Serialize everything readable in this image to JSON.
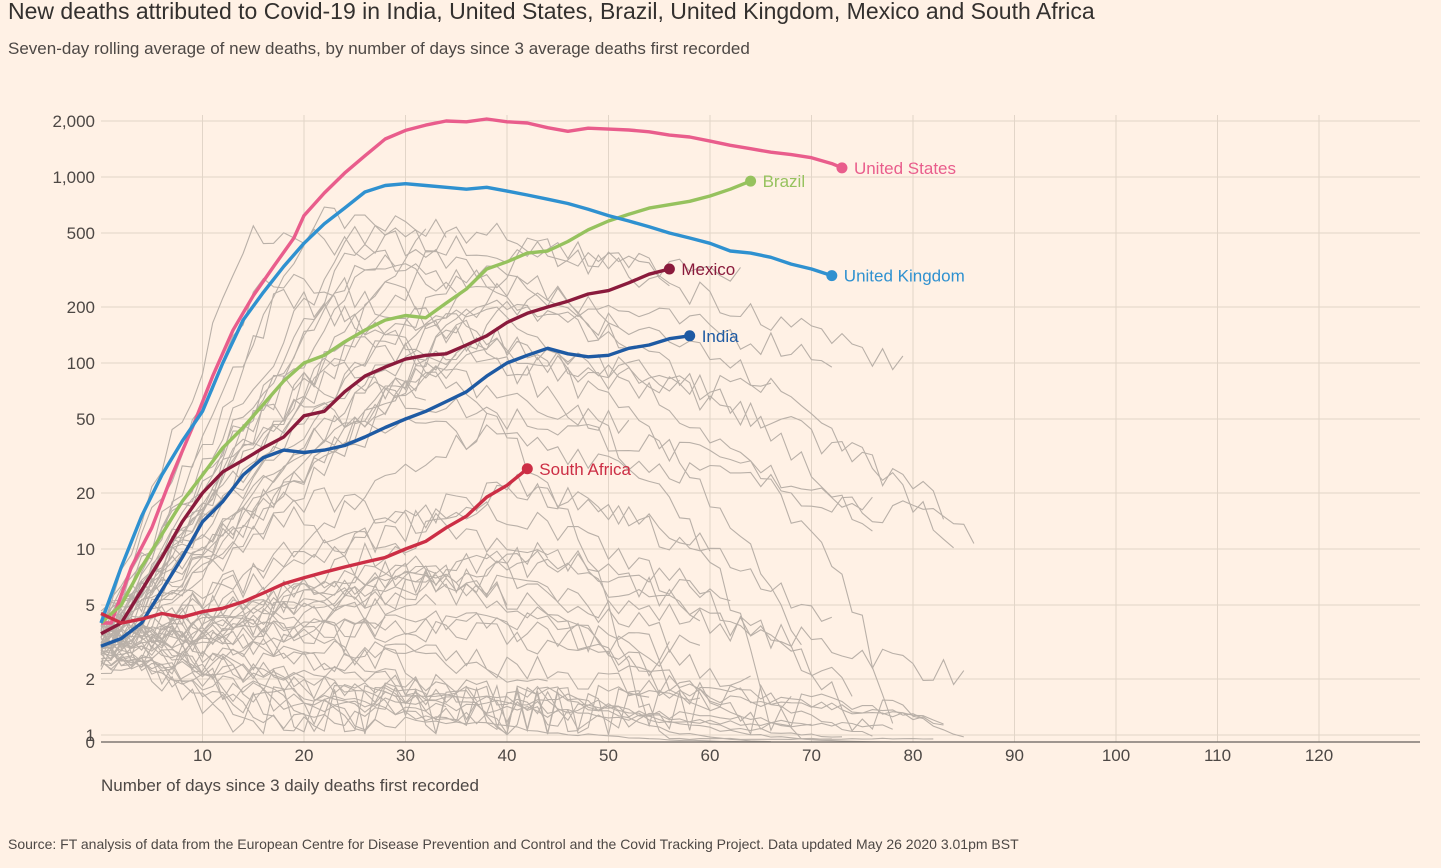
{
  "title": "New deaths attributed to Covid-19 in India, United States, Brazil, United Kingdom, Mexico and South Africa",
  "subtitle": "Seven-day rolling average of new deaths, by number of days since 3 average deaths first recorded",
  "source": "Source: FT analysis of data from the European Centre for Disease Prevention and Control and the Covid Tracking Project. Data updated May 26 2020 3.01pm BST",
  "chart_data": {
    "type": "line",
    "title": "New deaths attributed to Covid-19 in India, United States, Brazil, United Kingdom, Mexico and South Africa",
    "xlabel": "Number of days since 3 daily deaths first recorded",
    "ylabel": "",
    "xlim": [
      0,
      130
    ],
    "ylim": [
      0,
      2000
    ],
    "yscale": "log",
    "grid": true,
    "x_ticks": [
      "10",
      "20",
      "30",
      "40",
      "50",
      "60",
      "70",
      "80",
      "90",
      "100",
      "110",
      "120"
    ],
    "y_ticks": [
      "0",
      "1",
      "2",
      "5",
      "10",
      "20",
      "50",
      "100",
      "200",
      "500",
      "1,000",
      "2,000"
    ],
    "y_tick_values": [
      0,
      1,
      2,
      5,
      10,
      20,
      50,
      100,
      200,
      500,
      1000,
      2000
    ],
    "series": [
      {
        "name": "United States",
        "color": "#e95d8c",
        "label_text": "United States",
        "points": [
          [
            0,
            4
          ],
          [
            1,
            4
          ],
          [
            3,
            8
          ],
          [
            5,
            13
          ],
          [
            7,
            25
          ],
          [
            9,
            45
          ],
          [
            11,
            85
          ],
          [
            13,
            150
          ],
          [
            15,
            230
          ],
          [
            17,
            330
          ],
          [
            19,
            470
          ],
          [
            20,
            620
          ],
          [
            22,
            820
          ],
          [
            24,
            1050
          ],
          [
            26,
            1300
          ],
          [
            28,
            1600
          ],
          [
            30,
            1780
          ],
          [
            32,
            1900
          ],
          [
            34,
            2000
          ],
          [
            36,
            1980
          ],
          [
            38,
            2050
          ],
          [
            40,
            1980
          ],
          [
            42,
            1950
          ],
          [
            44,
            1840
          ],
          [
            46,
            1760
          ],
          [
            48,
            1830
          ],
          [
            50,
            1810
          ],
          [
            52,
            1790
          ],
          [
            54,
            1750
          ],
          [
            56,
            1680
          ],
          [
            58,
            1640
          ],
          [
            60,
            1560
          ],
          [
            62,
            1480
          ],
          [
            64,
            1420
          ],
          [
            66,
            1360
          ],
          [
            68,
            1320
          ],
          [
            70,
            1270
          ],
          [
            72,
            1180
          ],
          [
            73,
            1120
          ]
        ]
      },
      {
        "name": "Brazil",
        "color": "#96c25e",
        "label_text": "Brazil",
        "points": [
          [
            0,
            4
          ],
          [
            2,
            5
          ],
          [
            4,
            8
          ],
          [
            6,
            12
          ],
          [
            8,
            18
          ],
          [
            10,
            25
          ],
          [
            12,
            35
          ],
          [
            14,
            45
          ],
          [
            16,
            60
          ],
          [
            18,
            80
          ],
          [
            20,
            100
          ],
          [
            22,
            110
          ],
          [
            24,
            130
          ],
          [
            26,
            150
          ],
          [
            28,
            170
          ],
          [
            30,
            180
          ],
          [
            32,
            175
          ],
          [
            34,
            210
          ],
          [
            36,
            250
          ],
          [
            38,
            320
          ],
          [
            40,
            350
          ],
          [
            42,
            390
          ],
          [
            44,
            400
          ],
          [
            46,
            450
          ],
          [
            48,
            520
          ],
          [
            50,
            580
          ],
          [
            52,
            630
          ],
          [
            54,
            680
          ],
          [
            56,
            710
          ],
          [
            58,
            740
          ],
          [
            60,
            790
          ],
          [
            62,
            860
          ],
          [
            64,
            950
          ]
        ]
      },
      {
        "name": "United Kingdom",
        "color": "#2f91d0",
        "label_text": "United Kingdom",
        "points": [
          [
            0,
            4
          ],
          [
            2,
            8
          ],
          [
            4,
            15
          ],
          [
            6,
            25
          ],
          [
            8,
            38
          ],
          [
            10,
            55
          ],
          [
            12,
            100
          ],
          [
            14,
            170
          ],
          [
            16,
            240
          ],
          [
            18,
            330
          ],
          [
            20,
            440
          ],
          [
            22,
            560
          ],
          [
            24,
            680
          ],
          [
            26,
            830
          ],
          [
            28,
            900
          ],
          [
            30,
            920
          ],
          [
            32,
            900
          ],
          [
            34,
            880
          ],
          [
            36,
            860
          ],
          [
            38,
            880
          ],
          [
            40,
            840
          ],
          [
            42,
            800
          ],
          [
            44,
            760
          ],
          [
            46,
            720
          ],
          [
            48,
            670
          ],
          [
            50,
            620
          ],
          [
            52,
            580
          ],
          [
            54,
            540
          ],
          [
            56,
            500
          ],
          [
            58,
            470
          ],
          [
            60,
            440
          ],
          [
            62,
            400
          ],
          [
            64,
            390
          ],
          [
            66,
            370
          ],
          [
            68,
            340
          ],
          [
            70,
            320
          ],
          [
            72,
            295
          ]
        ]
      },
      {
        "name": "Mexico",
        "color": "#8a1a3c",
        "label_text": "Mexico",
        "points": [
          [
            0,
            3.5
          ],
          [
            2,
            4
          ],
          [
            4,
            6
          ],
          [
            6,
            9
          ],
          [
            8,
            14
          ],
          [
            10,
            20
          ],
          [
            12,
            26
          ],
          [
            14,
            30
          ],
          [
            16,
            35
          ],
          [
            18,
            40
          ],
          [
            20,
            52
          ],
          [
            22,
            55
          ],
          [
            24,
            70
          ],
          [
            26,
            85
          ],
          [
            28,
            95
          ],
          [
            30,
            105
          ],
          [
            32,
            110
          ],
          [
            34,
            112
          ],
          [
            36,
            125
          ],
          [
            38,
            140
          ],
          [
            40,
            165
          ],
          [
            42,
            185
          ],
          [
            44,
            200
          ],
          [
            46,
            215
          ],
          [
            48,
            235
          ],
          [
            50,
            245
          ],
          [
            52,
            270
          ],
          [
            54,
            300
          ],
          [
            56,
            320
          ]
        ]
      },
      {
        "name": "India",
        "color": "#1e5aa3",
        "label_text": "India",
        "points": [
          [
            0,
            3
          ],
          [
            2,
            3.3
          ],
          [
            4,
            4
          ],
          [
            6,
            6
          ],
          [
            8,
            9
          ],
          [
            10,
            14
          ],
          [
            12,
            18
          ],
          [
            14,
            25
          ],
          [
            16,
            31
          ],
          [
            18,
            34
          ],
          [
            20,
            33
          ],
          [
            22,
            34
          ],
          [
            24,
            36
          ],
          [
            26,
            40
          ],
          [
            28,
            45
          ],
          [
            30,
            50
          ],
          [
            32,
            55
          ],
          [
            34,
            62
          ],
          [
            36,
            70
          ],
          [
            38,
            85
          ],
          [
            40,
            100
          ],
          [
            42,
            110
          ],
          [
            44,
            120
          ],
          [
            46,
            112
          ],
          [
            48,
            108
          ],
          [
            50,
            110
          ],
          [
            52,
            120
          ],
          [
            54,
            125
          ],
          [
            56,
            135
          ],
          [
            58,
            140
          ]
        ]
      },
      {
        "name": "South Africa",
        "color": "#cc2e45",
        "label_text": "South Africa",
        "points": [
          [
            0,
            4.5
          ],
          [
            2,
            4
          ],
          [
            4,
            4.2
          ],
          [
            6,
            4.5
          ],
          [
            8,
            4.3
          ],
          [
            10,
            4.6
          ],
          [
            12,
            4.8
          ],
          [
            14,
            5.2
          ],
          [
            16,
            5.8
          ],
          [
            18,
            6.5
          ],
          [
            20,
            7
          ],
          [
            22,
            7.5
          ],
          [
            24,
            8
          ],
          [
            26,
            8.5
          ],
          [
            28,
            9
          ],
          [
            30,
            10
          ],
          [
            32,
            11
          ],
          [
            34,
            13
          ],
          [
            36,
            15
          ],
          [
            38,
            19
          ],
          [
            40,
            22
          ],
          [
            42,
            27
          ]
        ]
      }
    ]
  }
}
